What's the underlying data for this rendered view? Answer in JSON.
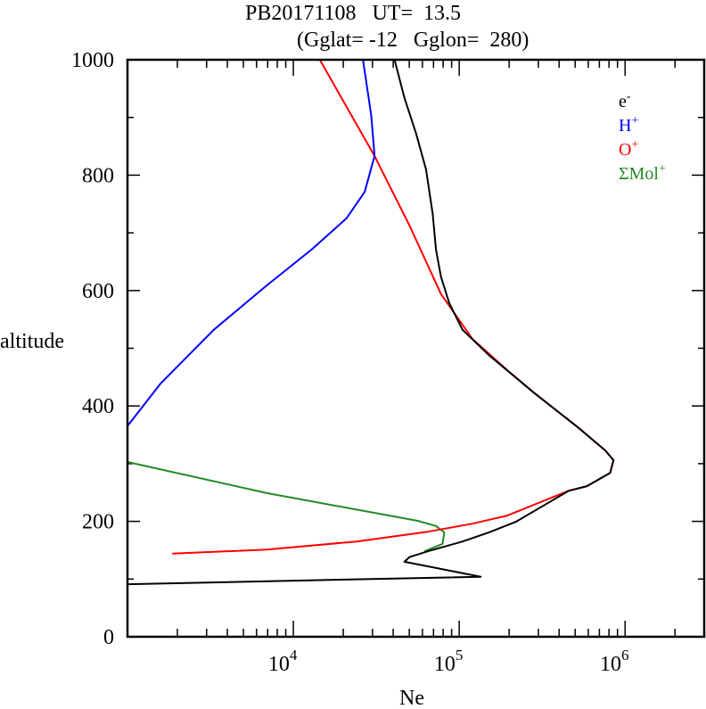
{
  "chart_data": {
    "type": "line",
    "title": "PB20171108   UT=  13.5",
    "subtitle": "(Gglat= -12   Gglon=  280)",
    "xlabel": "Ne",
    "ylabel": "altitude",
    "xscale": "log",
    "xlim": [
      1000,
      3000000
    ],
    "ylim": [
      0,
      1000
    ],
    "x_ticks": [
      {
        "value": 10000,
        "base": "10",
        "exp": "4"
      },
      {
        "value": 100000,
        "base": "10",
        "exp": "5"
      },
      {
        "value": 1000000,
        "base": "10",
        "exp": "6"
      }
    ],
    "y_ticks": [
      {
        "value": 0,
        "label": "0"
      },
      {
        "value": 200,
        "label": "200"
      },
      {
        "value": 400,
        "label": "400"
      },
      {
        "value": 600,
        "label": "600"
      },
      {
        "value": 800,
        "label": "800"
      },
      {
        "value": 1000,
        "label": "1000"
      }
    ],
    "y_minor_step": 100,
    "grid": false,
    "legend_position": "top-right",
    "series": [
      {
        "name": "e-",
        "label": "e",
        "sup": "-",
        "color": "#000000",
        "log10_x": [
          4.61,
          4.67,
          4.74,
          4.8,
          4.84,
          4.86,
          4.89,
          4.94,
          5.02,
          5.18,
          5.45,
          5.72,
          5.88,
          5.93,
          5.91,
          5.77,
          5.66,
          5.5,
          5.34,
          5.18,
          5.02,
          4.81,
          4.7,
          4.67,
          5.13,
          3.0
        ],
        "altitude": [
          1000,
          934,
          872,
          810,
          733,
          671,
          624,
          578,
          532,
          488,
          423,
          362,
          323,
          306,
          284,
          261,
          253,
          226,
          199,
          181,
          165,
          148,
          138,
          130,
          104,
          91
        ]
      },
      {
        "name": "H+",
        "label": "H",
        "sup": "+",
        "color": "#0000ff",
        "log10_x": [
          3.0,
          3.2,
          3.52,
          3.84,
          4.11,
          4.32,
          4.43,
          4.49,
          4.47,
          4.42
        ],
        "altitude": [
          365,
          439,
          532,
          609,
          671,
          725,
          771,
          833,
          903,
          1000
        ]
      },
      {
        "name": "O+",
        "label": "O",
        "sup": "+",
        "color": "#ff0000",
        "log10_x": [
          4.16,
          4.49,
          4.7,
          4.89,
          5.08,
          5.29,
          5.45,
          5.72,
          5.88,
          5.93,
          5.91,
          5.77,
          5.66,
          5.29,
          5.08,
          4.81,
          4.38,
          3.84,
          3.27
        ],
        "altitude": [
          1000,
          833,
          713,
          594,
          516,
          462,
          423,
          362,
          323,
          306,
          284,
          261,
          253,
          210,
          196,
          182,
          165,
          151,
          144
        ]
      },
      {
        "name": "ΣMol+",
        "label": "ΣMol",
        "sup": "+",
        "color": "#228b22",
        "log10_x": [
          3.0,
          3.84,
          4.75,
          4.86,
          4.91,
          4.9,
          4.79
        ],
        "altitude": [
          303,
          249,
          201,
          192,
          181,
          161,
          148
        ]
      }
    ]
  }
}
